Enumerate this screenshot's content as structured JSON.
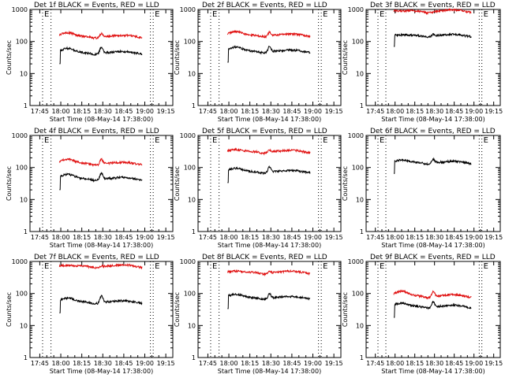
{
  "chart_data": [
    {
      "type": "line",
      "title": "Det 1f BLACK = Events, RED = LLD",
      "xlabel": "Start Time (08-May-14 17:38:00)",
      "ylabel": "Counts/sec",
      "yscale": "log",
      "ylim": [
        1,
        1000
      ],
      "x_ticks": [
        "17:45",
        "18:00",
        "18:15",
        "18:30",
        "18:45",
        "19:00",
        "19:15"
      ],
      "y_ticks": [
        "1",
        "10",
        "100",
        "1000"
      ],
      "event_marks": [
        "E",
        "E"
      ],
      "series": [
        {
          "name": "Events",
          "color": "#000000",
          "level": 45,
          "spike": 1.6,
          "bump": 1.4,
          "start_dip": true
        },
        {
          "name": "LLD",
          "color": "#e01010",
          "level": 145,
          "spike": 1.3,
          "bump": 1.35
        }
      ]
    },
    {
      "type": "line",
      "title": "Det 2f BLACK = Events, RED = LLD",
      "xlabel": "Start Time (08-May-14 17:38:00)",
      "ylabel": "Counts/sec",
      "yscale": "log",
      "ylim": [
        1,
        1000
      ],
      "x_ticks": [
        "17:45",
        "18:00",
        "18:15",
        "18:30",
        "18:45",
        "19:00",
        "19:15"
      ],
      "y_ticks": [
        "1",
        "10",
        "100",
        "1000"
      ],
      "event_marks": [
        "E",
        "E"
      ],
      "series": [
        {
          "name": "Events",
          "color": "#000000",
          "level": 50,
          "spike": 1.5,
          "bump": 1.4,
          "start_dip": true
        },
        {
          "name": "LLD",
          "color": "#e01010",
          "level": 160,
          "spike": 1.3,
          "bump": 1.3
        }
      ]
    },
    {
      "type": "line",
      "title": "Det 3f BLACK = Events, RED = LLD",
      "xlabel": "Start Time (08-May-14 17:38:00)",
      "ylabel": "Counts/sec",
      "yscale": "log",
      "ylim": [
        1,
        1000
      ],
      "x_ticks": [
        "17:45",
        "18:00",
        "18:15",
        "18:30",
        "18:45",
        "19:00",
        "19:15"
      ],
      "y_ticks": [
        "1",
        "10",
        "100",
        "1000"
      ],
      "event_marks": [
        "E",
        "E"
      ],
      "series": [
        {
          "name": "Events",
          "color": "#000000",
          "level": 155,
          "spike": 1.15,
          "bump": 1.05,
          "start_dip": true
        },
        {
          "name": "LLD",
          "color": "#e01010",
          "level": 900,
          "spike": 1.0,
          "bump": 1.0
        }
      ]
    },
    {
      "type": "line",
      "title": "Det 4f BLACK = Events, RED = LLD",
      "xlabel": "Start Time (08-May-14 17:38:00)",
      "ylabel": "Counts/sec",
      "yscale": "log",
      "ylim": [
        1,
        1000
      ],
      "x_ticks": [
        "17:45",
        "18:00",
        "18:15",
        "18:30",
        "18:45",
        "19:00",
        "19:15"
      ],
      "y_ticks": [
        "1",
        "10",
        "100",
        "1000"
      ],
      "event_marks": [
        "E",
        "E"
      ],
      "series": [
        {
          "name": "Events",
          "color": "#000000",
          "level": 45,
          "spike": 1.6,
          "bump": 1.4,
          "start_dip": true
        },
        {
          "name": "LLD",
          "color": "#e01010",
          "level": 135,
          "spike": 1.4,
          "bump": 1.4
        }
      ]
    },
    {
      "type": "line",
      "title": "Det 5f BLACK = Events, RED = LLD",
      "xlabel": "Start Time (08-May-14 17:38:00)",
      "ylabel": "Counts/sec",
      "yscale": "log",
      "ylim": [
        1,
        1000
      ],
      "x_ticks": [
        "17:45",
        "18:00",
        "18:15",
        "18:30",
        "18:45",
        "19:00",
        "19:15"
      ],
      "y_ticks": [
        "1",
        "10",
        "100",
        "1000"
      ],
      "event_marks": [
        "E",
        "E"
      ],
      "series": [
        {
          "name": "Events",
          "color": "#000000",
          "level": 75,
          "spike": 1.5,
          "bump": 1.3,
          "start_dip": true
        },
        {
          "name": "LLD",
          "color": "#e01010",
          "level": 320,
          "spike": 1.15,
          "bump": 1.15
        }
      ]
    },
    {
      "type": "line",
      "title": "Det 6f BLACK = Events, RED = LLD",
      "xlabel": "Start Time (08-May-14 17:38:00)",
      "ylabel": "Counts/sec",
      "yscale": "log",
      "ylim": [
        1,
        1000
      ],
      "x_ticks": [
        "17:45",
        "18:00",
        "18:15",
        "18:30",
        "18:45",
        "19:00",
        "19:15"
      ],
      "y_ticks": [
        "1",
        "10",
        "100",
        "1000"
      ],
      "event_marks": [
        "E",
        "E"
      ],
      "series": [
        {
          "name": "Events",
          "color": "#000000",
          "level": 145,
          "spike": 1.35,
          "bump": 1.2,
          "start_dip": true
        }
      ]
    },
    {
      "type": "line",
      "title": "Det 7f BLACK = Events, RED = LLD",
      "xlabel": "Start Time (08-May-14 17:38:00)",
      "ylabel": "Counts/sec",
      "yscale": "log",
      "ylim": [
        1,
        1000
      ],
      "x_ticks": [
        "17:45",
        "18:00",
        "18:15",
        "18:30",
        "18:45",
        "19:00",
        "19:15"
      ],
      "y_ticks": [
        "1",
        "10",
        "100",
        "1000"
      ],
      "event_marks": [
        "E",
        "E"
      ],
      "series": [
        {
          "name": "Events",
          "color": "#000000",
          "level": 55,
          "spike": 1.6,
          "bump": 1.35,
          "start_dip": true
        },
        {
          "name": "LLD",
          "color": "#e01010",
          "level": 720,
          "spike": 1.05,
          "bump": 1.05
        }
      ]
    },
    {
      "type": "line",
      "title": "Det 8f BLACK = Events, RED = LLD",
      "xlabel": "Start Time (08-May-14 17:38:00)",
      "ylabel": "Counts/sec",
      "yscale": "log",
      "ylim": [
        1,
        1000
      ],
      "x_ticks": [
        "17:45",
        "18:00",
        "18:15",
        "18:30",
        "18:45",
        "19:00",
        "19:15"
      ],
      "y_ticks": [
        "1",
        "10",
        "100",
        "1000"
      ],
      "event_marks": [
        "E",
        "E"
      ],
      "series": [
        {
          "name": "Events",
          "color": "#000000",
          "level": 75,
          "spike": 1.4,
          "bump": 1.3,
          "start_dip": true
        },
        {
          "name": "LLD",
          "color": "#e01010",
          "level": 460,
          "spike": 1.1,
          "bump": 1.1
        }
      ]
    },
    {
      "type": "line",
      "title": "Det 9f BLACK = Events, RED = LLD",
      "xlabel": "Start Time (08-May-14 17:38:00)",
      "ylabel": "Counts/sec",
      "yscale": "log",
      "ylim": [
        1,
        1000
      ],
      "x_ticks": [
        "17:45",
        "18:00",
        "18:15",
        "18:30",
        "18:45",
        "19:00",
        "19:15"
      ],
      "y_ticks": [
        "1",
        "10",
        "100",
        "1000"
      ],
      "event_marks": [
        "E",
        "E"
      ],
      "series": [
        {
          "name": "Events",
          "color": "#000000",
          "level": 40,
          "spike": 1.5,
          "bump": 1.3,
          "start_dip": true
        },
        {
          "name": "LLD",
          "color": "#e01010",
          "level": 85,
          "spike": 1.45,
          "bump": 1.45
        }
      ]
    }
  ]
}
